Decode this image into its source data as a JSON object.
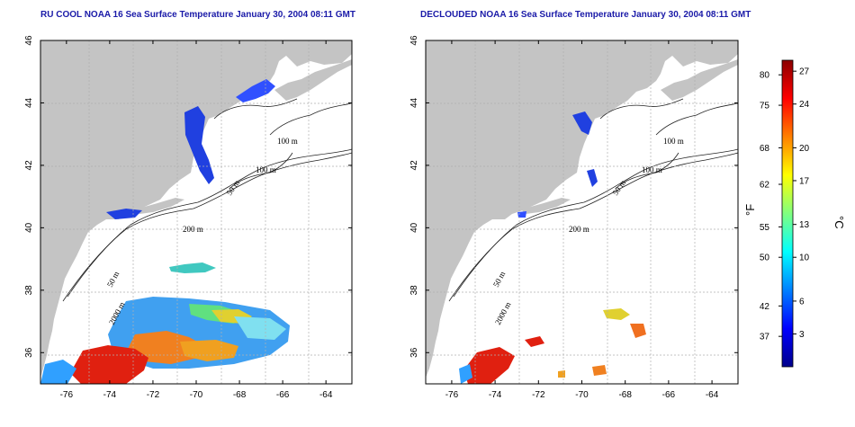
{
  "panels": [
    {
      "id": "raw",
      "title": "RU COOL NOAA 16 Sea Surface Temperature January 30, 2004 08:11 GMT"
    },
    {
      "id": "declouded",
      "title": "DECLOUDED NOAA 16 Sea Surface Temperature January 30, 2004 08:11 GMT"
    }
  ],
  "axes": {
    "lon_ticks": [
      "-76",
      "-74",
      "-72",
      "-70",
      "-68",
      "-66",
      "-64"
    ],
    "lat_ticks": [
      "46",
      "44",
      "42",
      "40",
      "38",
      "36"
    ],
    "lon_range": [
      -77.2,
      -62.8
    ],
    "lat_range": [
      35,
      46
    ]
  },
  "contour_labels": {
    "c100a": "100 m",
    "c100b": "100 m",
    "c50a": "50 m",
    "c200": "200 m",
    "c50b": "50 m",
    "c2000": "2000 m"
  },
  "colorbar": {
    "fahrenheit_label": "°F",
    "celsius_label": "°C",
    "fahrenheit_ticks": [
      "80",
      "75",
      "68",
      "62",
      "55",
      "50",
      "42",
      "37"
    ],
    "celsius_ticks": [
      "27",
      "24",
      "20",
      "17",
      "13",
      "10",
      "6",
      "3"
    ],
    "celsius_range": [
      0,
      28
    ],
    "gradient": [
      "#00008b",
      "#0000ff",
      "#0080ff",
      "#00ffff",
      "#80ff80",
      "#ffff00",
      "#ff8000",
      "#ff0000",
      "#8b0000"
    ]
  },
  "colors": {
    "land": "#c4c4c4",
    "ocean": "#ffffff",
    "grid": "#b0b0b0",
    "title": "#1a1aa8"
  }
}
